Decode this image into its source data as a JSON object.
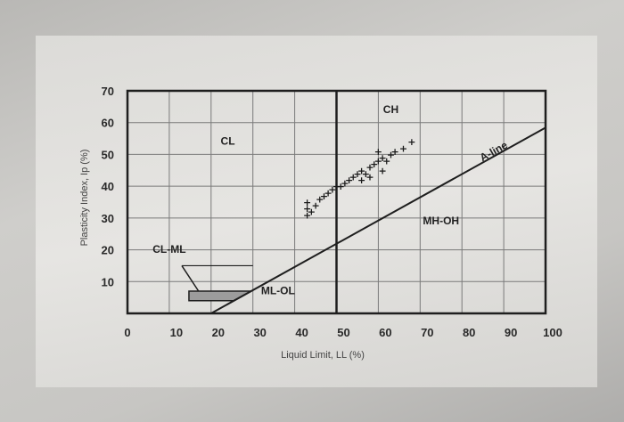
{
  "chart_data": {
    "type": "scatter",
    "xlabel": "Liquid Limit, LL (%)",
    "ylabel": "Plasticity Index, Ip (%)",
    "xlim": [
      0,
      100
    ],
    "ylim": [
      0,
      70
    ],
    "x_ticks": [
      "0",
      "10",
      "20",
      "30",
      "40",
      "50",
      "60",
      "70",
      "80",
      "90",
      "100"
    ],
    "y_ticks": [
      "10",
      "20",
      "30",
      "40",
      "50",
      "60",
      "70"
    ],
    "grid": true,
    "region_labels": [
      "CH",
      "CL",
      "MH-OH",
      "ML-OL",
      "CL-ML"
    ],
    "line_label": "A-line",
    "a_line": [
      [
        20,
        0
      ],
      [
        100,
        58.4
      ]
    ],
    "boundary_ll": 50,
    "cl_ml_zone": [
      [
        14.7,
        4
      ],
      [
        25.5,
        4
      ],
      [
        29.6,
        7
      ],
      [
        14.7,
        7
      ]
    ],
    "series": [
      {
        "marker": "+",
        "points": [
          [
            43,
            31
          ],
          [
            43,
            33
          ],
          [
            43,
            35
          ],
          [
            44,
            32
          ],
          [
            45,
            34
          ],
          [
            46,
            36
          ],
          [
            47,
            37
          ],
          [
            48,
            38
          ],
          [
            49,
            39
          ],
          [
            50,
            40
          ],
          [
            51,
            40
          ],
          [
            52,
            41
          ],
          [
            53,
            42
          ],
          [
            54,
            43
          ],
          [
            55,
            44
          ],
          [
            56,
            45
          ],
          [
            57,
            44
          ],
          [
            58,
            46
          ],
          [
            59,
            47
          ],
          [
            60,
            48
          ],
          [
            61,
            49
          ],
          [
            62,
            48
          ],
          [
            63,
            50
          ],
          [
            64,
            51
          ],
          [
            56,
            42
          ],
          [
            61,
            45
          ],
          [
            66,
            52
          ],
          [
            68,
            54
          ],
          [
            60,
            51
          ],
          [
            58,
            43
          ]
        ]
      }
    ]
  }
}
